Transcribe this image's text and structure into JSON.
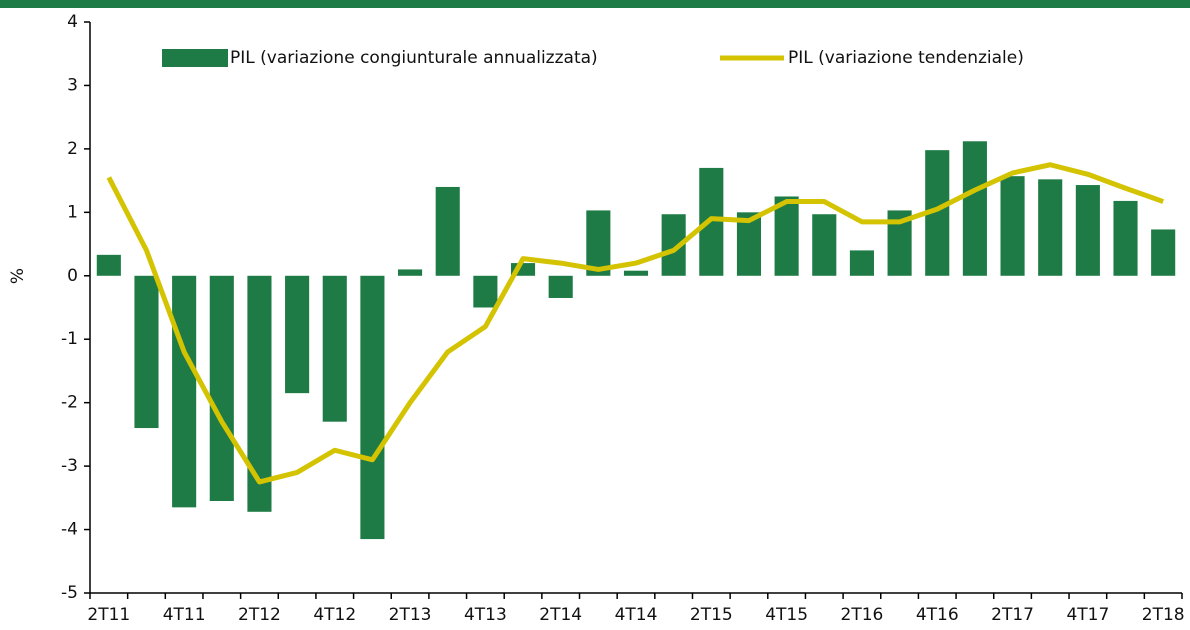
{
  "chart_data": {
    "type": "bar_line",
    "y_label": "%",
    "categories": [
      "2T11",
      null,
      "4T11",
      null,
      "2T12",
      null,
      "4T12",
      null,
      "2T13",
      null,
      "4T13",
      null,
      "2T14",
      null,
      "4T14",
      null,
      "2T15",
      null,
      "4T15",
      null,
      "2T16",
      null,
      "4T16",
      null,
      "2T17",
      null,
      "4T17",
      null,
      "2T18"
    ],
    "series": [
      {
        "name": "PIL (variazione congiunturale annualizzata)",
        "type": "bar",
        "color": "#1e7b45",
        "values": [
          0.33,
          -2.4,
          -3.65,
          -3.55,
          -3.72,
          -1.85,
          -2.3,
          -4.15,
          0.1,
          1.4,
          -0.5,
          0.2,
          -0.35,
          1.03,
          0.08,
          0.97,
          1.7,
          1.0,
          1.25,
          0.97,
          0.4,
          1.03,
          1.98,
          2.12,
          1.57,
          1.52,
          1.43,
          1.18,
          0.73
        ]
      },
      {
        "name": "PIL (variazione tendenziale)",
        "type": "line",
        "color": "#d4c300",
        "values": [
          1.55,
          0.4,
          -1.2,
          -2.3,
          -3.25,
          -3.1,
          -2.75,
          -2.9,
          -2.0,
          -1.2,
          -0.8,
          0.27,
          0.2,
          0.1,
          0.2,
          0.4,
          0.9,
          0.87,
          1.17,
          1.17,
          0.85,
          0.85,
          1.05,
          1.35,
          1.62,
          1.75,
          1.6,
          1.38,
          1.17
        ]
      }
    ],
    "ylim": [
      -5,
      4
    ],
    "yticks": [
      -5,
      -4,
      -3,
      -2,
      -1,
      0,
      1,
      2,
      3,
      4
    ],
    "grid": false,
    "legend": "top"
  }
}
